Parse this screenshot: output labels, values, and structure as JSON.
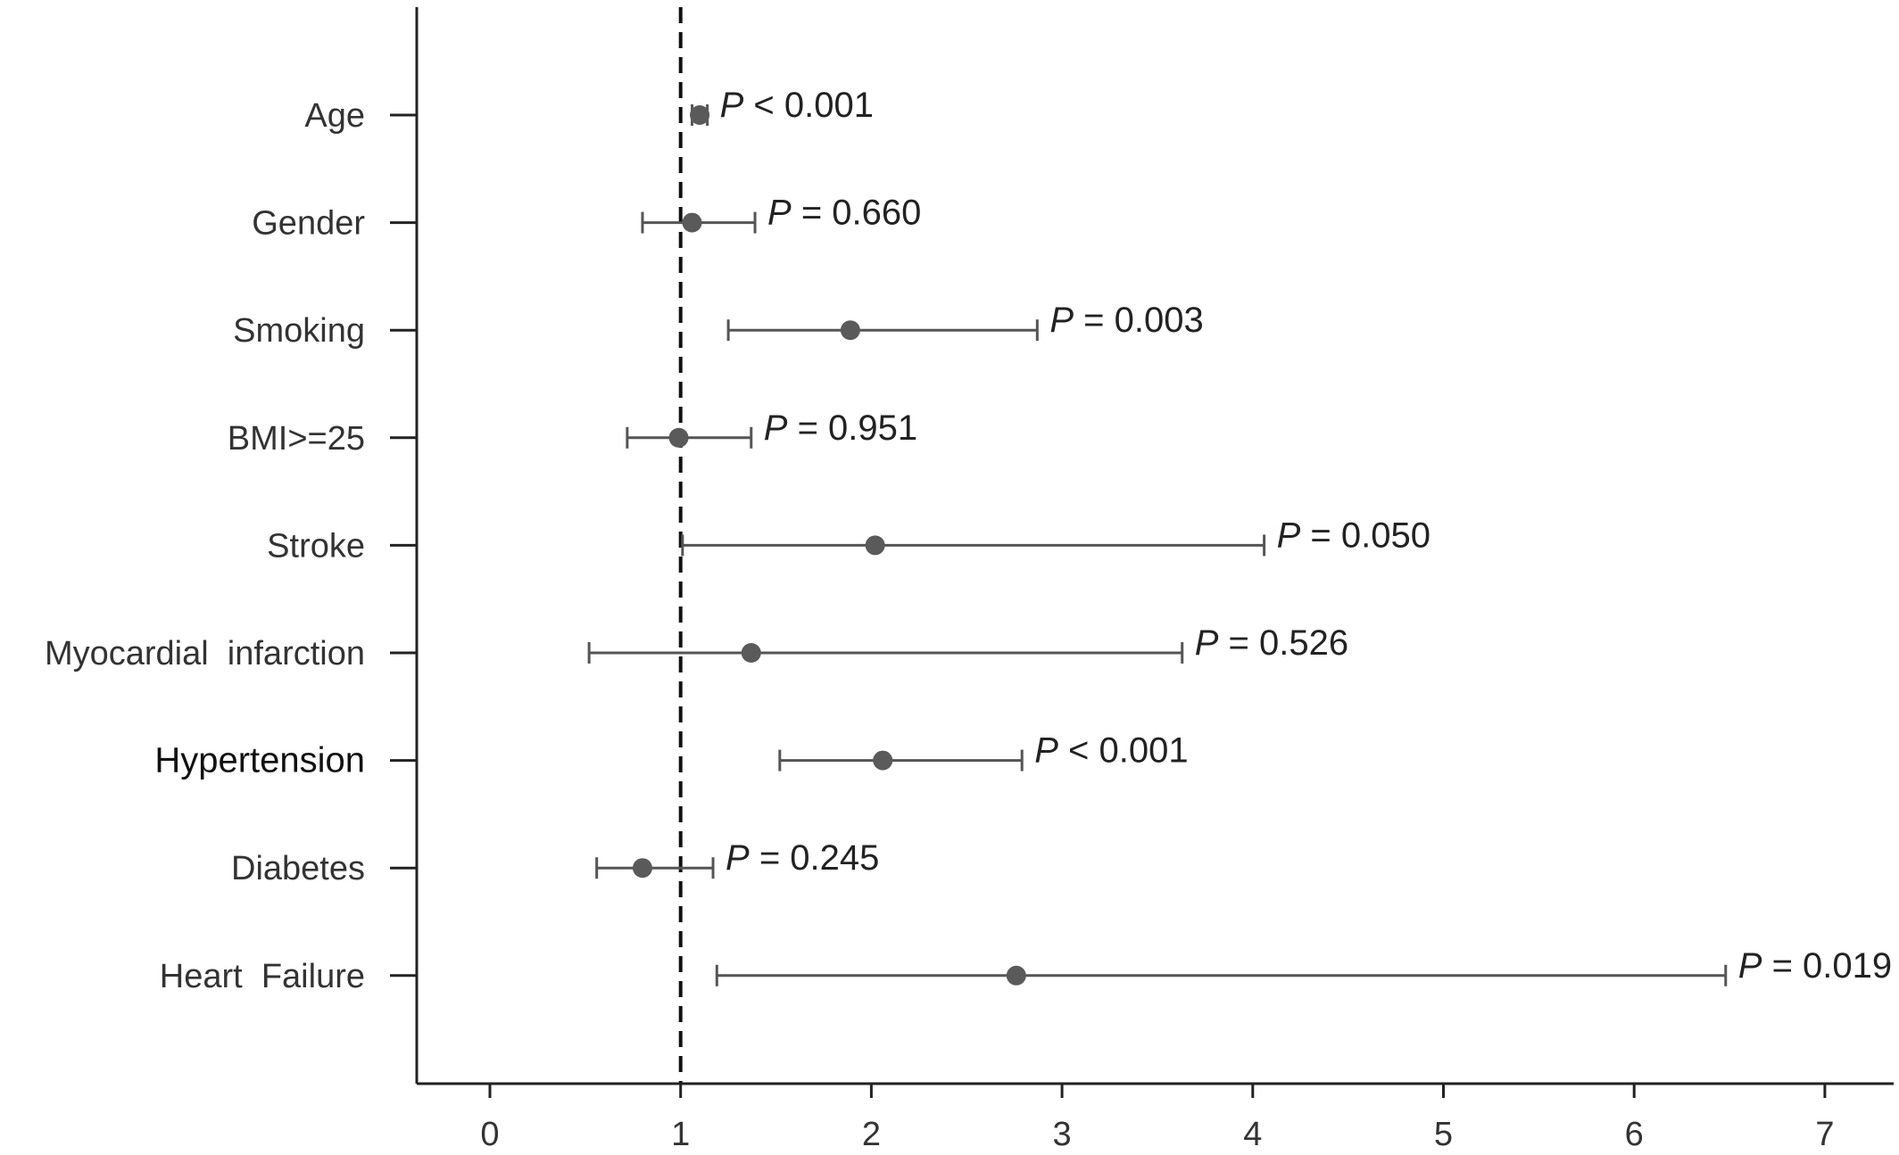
{
  "chart_data": {
    "type": "scatter",
    "subtype": "forest-plot",
    "title": "",
    "xlabel": "",
    "ylabel": "",
    "xlim": [
      -0.4,
      7.4
    ],
    "xticks": [
      0,
      1,
      2,
      3,
      4,
      5,
      6,
      7
    ],
    "xtick_labels": [
      "0",
      "1",
      "2",
      "3",
      "4",
      "5",
      "6",
      "7"
    ],
    "reference_line": 1,
    "grid": false,
    "legend": "none",
    "colors": {
      "point": "#5a5a5a",
      "ci": "#555555",
      "axis": "#222222",
      "reference": "#111111"
    },
    "rows": [
      {
        "label": "Age",
        "estimate": 1.1,
        "lower": 1.06,
        "upper": 1.14,
        "p_prefix": "P",
        "p_text": " < 0.001",
        "bold": false
      },
      {
        "label": "Gender",
        "estimate": 1.06,
        "lower": 0.8,
        "upper": 1.39,
        "p_prefix": "P",
        "p_text": " = 0.660",
        "bold": false
      },
      {
        "label": "Smoking",
        "estimate": 1.89,
        "lower": 1.25,
        "upper": 2.87,
        "p_prefix": "P",
        "p_text": " = 0.003",
        "bold": false
      },
      {
        "label": "BMI>=25",
        "estimate": 0.99,
        "lower": 0.72,
        "upper": 1.37,
        "p_prefix": "P",
        "p_text": " = 0.951",
        "bold": false
      },
      {
        "label": "Stroke",
        "estimate": 2.02,
        "lower": 1.01,
        "upper": 4.06,
        "p_prefix": "P",
        "p_text": " = 0.050",
        "bold": false
      },
      {
        "label": "Myocardial  infarction",
        "estimate": 1.37,
        "lower": 0.52,
        "upper": 3.63,
        "p_prefix": "P",
        "p_text": " = 0.526",
        "bold": false
      },
      {
        "label": "Hypertension",
        "estimate": 2.06,
        "lower": 1.52,
        "upper": 2.79,
        "p_prefix": "P",
        "p_text": " < 0.001",
        "bold": true
      },
      {
        "label": "Diabetes",
        "estimate": 0.8,
        "lower": 0.56,
        "upper": 1.17,
        "p_prefix": "P",
        "p_text": " = 0.245",
        "bold": false
      },
      {
        "label": "Heart  Failure",
        "estimate": 2.76,
        "lower": 1.19,
        "upper": 6.48,
        "p_prefix": "P",
        "p_text": " = 0.019",
        "bold": false
      }
    ]
  }
}
